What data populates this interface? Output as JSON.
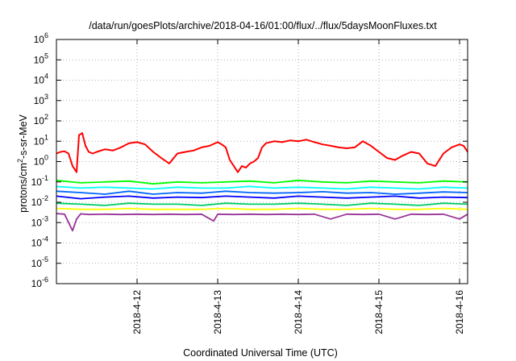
{
  "chart_data": {
    "type": "line",
    "title": "/data/run/goesPlots/archive/2018-04-16/01:00/flux/../flux/5daysMoonFluxes.txt",
    "xlabel": "Coordinated Universal Time (UTC)",
    "ylabel": "protons/cm²-s-sr-MeV",
    "ylabel_parts": {
      "before": "protons/cm",
      "sup": "2",
      "after": "-s-sr-MeV"
    },
    "yscale": "log",
    "ylim": [
      1e-06,
      1000000.0
    ],
    "x_range_days": [
      0,
      5.1
    ],
    "xticks": [
      {
        "label": "2018-4-12",
        "day": 1
      },
      {
        "label": "2018-4-13",
        "day": 2
      },
      {
        "label": "2018-4-14",
        "day": 3
      },
      {
        "label": "2018-4-15",
        "day": 4
      },
      {
        "label": "2018-4-16",
        "day": 5
      }
    ],
    "yticks": [
      {
        "base": "10",
        "exp": "6",
        "value": 1000000.0
      },
      {
        "base": "10",
        "exp": "5",
        "value": 100000.0
      },
      {
        "base": "10",
        "exp": "4",
        "value": 10000.0
      },
      {
        "base": "10",
        "exp": "3",
        "value": 1000.0
      },
      {
        "base": "10",
        "exp": "2",
        "value": 100.0
      },
      {
        "base": "10",
        "exp": "1",
        "value": 10.0
      },
      {
        "base": "10",
        "exp": "0",
        "value": 1.0
      },
      {
        "base": "10",
        "exp": "-1",
        "value": 0.1
      },
      {
        "base": "10",
        "exp": "-2",
        "value": 0.01
      },
      {
        "base": "10",
        "exp": "-3",
        "value": 0.001
      },
      {
        "base": "10",
        "exp": "-4",
        "value": 0.0001
      },
      {
        "base": "10",
        "exp": "-5",
        "value": 1e-05
      },
      {
        "base": "10",
        "exp": "-6",
        "value": 1e-06
      }
    ],
    "grid": true,
    "series": [
      {
        "color": "#ff0000",
        "x": [
          0,
          0.05,
          0.1,
          0.15,
          0.2,
          0.25,
          0.28,
          0.32,
          0.36,
          0.4,
          0.45,
          0.5,
          0.6,
          0.7,
          0.8,
          0.9,
          1.0,
          1.1,
          1.2,
          1.3,
          1.4,
          1.5,
          1.6,
          1.7,
          1.8,
          1.9,
          2.0,
          2.05,
          2.1,
          2.15,
          2.2,
          2.25,
          2.3,
          2.35,
          2.4,
          2.45,
          2.5,
          2.55,
          2.6,
          2.7,
          2.8,
          2.9,
          3.0,
          3.1,
          3.2,
          3.3,
          3.4,
          3.5,
          3.6,
          3.7,
          3.8,
          3.9,
          4.0,
          4.1,
          4.2,
          4.3,
          4.4,
          4.5,
          4.6,
          4.7,
          4.8,
          4.9,
          5.0,
          5.05,
          5.1
        ],
        "y": [
          2.5,
          3,
          3.2,
          2.5,
          0.6,
          0.3,
          20,
          25,
          6,
          3,
          2.5,
          3,
          4,
          3.5,
          5,
          8,
          9,
          7,
          3,
          1.5,
          0.8,
          2.5,
          3,
          3.5,
          5,
          6,
          9,
          7,
          5,
          1.2,
          0.6,
          0.3,
          0.6,
          0.5,
          0.8,
          1,
          1.5,
          5,
          8,
          10,
          9,
          11,
          10,
          12,
          9,
          7,
          6,
          5,
          4.5,
          5,
          10,
          6,
          3,
          1.5,
          1.2,
          2,
          3,
          2.5,
          0.8,
          0.6,
          2.5,
          5,
          7,
          6,
          3
        ]
      },
      {
        "color": "#00ff00",
        "x": [
          0,
          0.3,
          0.6,
          0.9,
          1.2,
          1.5,
          1.8,
          2.1,
          2.4,
          2.7,
          3.0,
          3.3,
          3.6,
          3.9,
          4.2,
          4.5,
          4.8,
          5.1
        ],
        "y": [
          0.12,
          0.09,
          0.1,
          0.11,
          0.08,
          0.1,
          0.09,
          0.1,
          0.11,
          0.09,
          0.12,
          0.1,
          0.09,
          0.11,
          0.1,
          0.09,
          0.11,
          0.1
        ]
      },
      {
        "color": "#00ffff",
        "x": [
          0,
          0.3,
          0.6,
          0.9,
          1.2,
          1.5,
          1.8,
          2.1,
          2.4,
          2.7,
          3.0,
          3.3,
          3.6,
          3.9,
          4.2,
          4.5,
          4.8,
          5.1
        ],
        "y": [
          0.06,
          0.05,
          0.055,
          0.05,
          0.045,
          0.055,
          0.05,
          0.05,
          0.06,
          0.05,
          0.055,
          0.05,
          0.045,
          0.055,
          0.05,
          0.045,
          0.055,
          0.05
        ]
      },
      {
        "color": "#0066ff",
        "x": [
          0,
          0.3,
          0.6,
          0.9,
          1.2,
          1.5,
          1.8,
          2.1,
          2.4,
          2.7,
          3.0,
          3.3,
          3.6,
          3.9,
          4.2,
          4.5,
          4.8,
          5.1
        ],
        "y": [
          0.035,
          0.03,
          0.025,
          0.035,
          0.025,
          0.03,
          0.028,
          0.035,
          0.03,
          0.028,
          0.03,
          0.033,
          0.028,
          0.03,
          0.025,
          0.028,
          0.032,
          0.03
        ]
      },
      {
        "color": "#0000ff",
        "x": [
          0,
          0.3,
          0.6,
          0.9,
          1.2,
          1.5,
          1.8,
          2.1,
          2.4,
          2.7,
          3.0,
          3.3,
          3.6,
          3.9,
          4.2,
          4.5,
          4.8,
          5.1
        ],
        "y": [
          0.02,
          0.015,
          0.018,
          0.02,
          0.016,
          0.018,
          0.017,
          0.02,
          0.018,
          0.016,
          0.02,
          0.018,
          0.016,
          0.018,
          0.02,
          0.016,
          0.018,
          0.017
        ]
      },
      {
        "color": "#00cc66",
        "x": [
          0,
          0.3,
          0.6,
          0.9,
          1.2,
          1.5,
          1.8,
          2.1,
          2.4,
          2.7,
          3.0,
          3.3,
          3.6,
          3.9,
          4.2,
          4.5,
          4.8,
          5.1
        ],
        "y": [
          0.009,
          0.008,
          0.007,
          0.009,
          0.008,
          0.008,
          0.007,
          0.009,
          0.008,
          0.008,
          0.009,
          0.008,
          0.007,
          0.009,
          0.008,
          0.007,
          0.009,
          0.008
        ]
      },
      {
        "color": "#ffff00",
        "x": [
          0,
          0.3,
          0.6,
          0.9,
          1.2,
          1.5,
          1.8,
          2.1,
          2.4,
          2.7,
          3.0,
          3.3,
          3.6,
          3.9,
          4.2,
          4.5,
          4.8,
          5.1
        ],
        "y": [
          0.005,
          0.0045,
          0.0045,
          0.005,
          0.0045,
          0.0045,
          0.0045,
          0.005,
          0.0045,
          0.0045,
          0.005,
          0.0045,
          0.0045,
          0.005,
          0.0045,
          0.0045,
          0.005,
          0.0045
        ]
      },
      {
        "color": "#993399",
        "x": [
          0,
          0.1,
          0.2,
          0.25,
          0.3,
          0.4,
          0.6,
          0.8,
          1.0,
          1.2,
          1.4,
          1.6,
          1.8,
          1.95,
          2.0,
          2.2,
          2.4,
          2.6,
          2.8,
          3.0,
          3.2,
          3.4,
          3.6,
          3.8,
          4.0,
          4.2,
          4.4,
          4.6,
          4.8,
          5.0,
          5.1
        ],
        "y": [
          0.0028,
          0.0026,
          0.0004,
          0.0015,
          0.0027,
          0.0025,
          0.0026,
          0.0025,
          0.0026,
          0.0025,
          0.0026,
          0.0025,
          0.0026,
          0.0012,
          0.0026,
          0.0025,
          0.0026,
          0.0025,
          0.0026,
          0.0025,
          0.0026,
          0.0015,
          0.0026,
          0.0025,
          0.0026,
          0.0015,
          0.0026,
          0.0025,
          0.0026,
          0.0015,
          0.0026
        ]
      }
    ]
  }
}
